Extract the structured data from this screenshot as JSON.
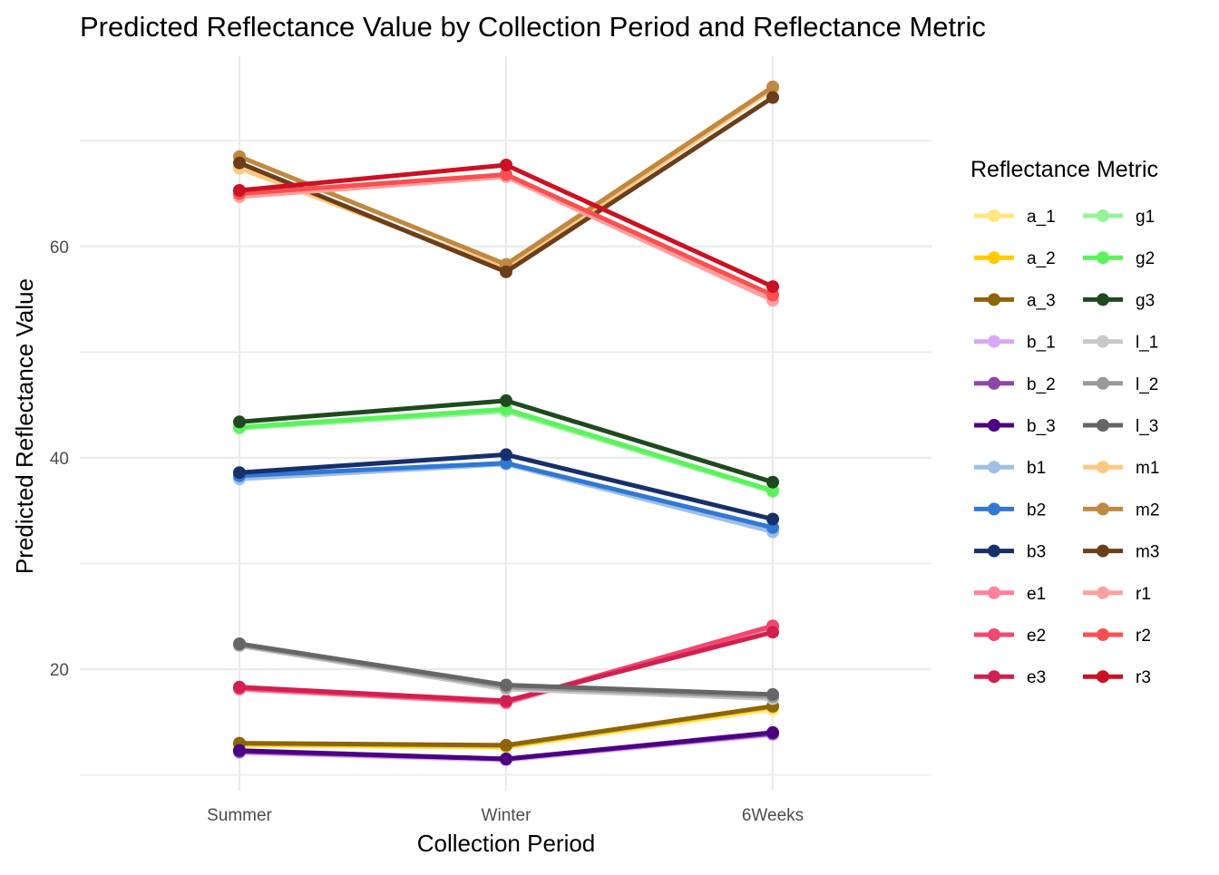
{
  "chart_data": {
    "type": "line",
    "title": "Predicted Reflectance Value by Collection Period and Reflectance Metric",
    "xlabel": "Collection Period",
    "ylabel": "Predicted Reflectance Value",
    "categories": [
      "Summer",
      "Winter",
      "6Weeks"
    ],
    "ylim": [
      8.5,
      78
    ],
    "yticks": [
      20,
      40,
      60
    ],
    "grid": true,
    "legend": {
      "title": "Reflectance Metric",
      "position": "right",
      "columns": 2
    },
    "series": [
      {
        "name": "a_1",
        "color": "#FFE680",
        "values": [
          12.8,
          12.6,
          16.2
        ]
      },
      {
        "name": "a_2",
        "color": "#FFCC00",
        "values": [
          12.9,
          12.7,
          16.4
        ]
      },
      {
        "name": "a_3",
        "color": "#8B6508",
        "values": [
          13.0,
          12.8,
          16.5
        ]
      },
      {
        "name": "b_1",
        "color": "#D8A8F8",
        "values": [
          12.1,
          11.4,
          13.8
        ]
      },
      {
        "name": "b_2",
        "color": "#8E44AD",
        "values": [
          12.2,
          11.5,
          13.9
        ]
      },
      {
        "name": "b_3",
        "color": "#4B0082",
        "values": [
          12.3,
          11.5,
          14.0
        ]
      },
      {
        "name": "b1",
        "color": "#9FBFE8",
        "values": [
          38.0,
          39.4,
          33.0
        ]
      },
      {
        "name": "b2",
        "color": "#3178D4",
        "values": [
          38.3,
          39.5,
          33.4
        ]
      },
      {
        "name": "b3",
        "color": "#172F6B",
        "values": [
          38.6,
          40.3,
          34.2
        ]
      },
      {
        "name": "e1",
        "color": "#FF8099",
        "values": [
          18.1,
          16.8,
          24.0
        ]
      },
      {
        "name": "e2",
        "color": "#F04870",
        "values": [
          18.2,
          16.9,
          24.1
        ]
      },
      {
        "name": "e3",
        "color": "#D12050",
        "values": [
          18.3,
          17.0,
          23.5
        ]
      },
      {
        "name": "g1",
        "color": "#99F299",
        "values": [
          42.8,
          44.4,
          36.8
        ]
      },
      {
        "name": "g2",
        "color": "#5CF25C",
        "values": [
          42.9,
          44.6,
          36.9
        ]
      },
      {
        "name": "g3",
        "color": "#1F4A1F",
        "values": [
          43.4,
          45.4,
          37.7
        ]
      },
      {
        "name": "l_1",
        "color": "#C8C8C8",
        "values": [
          22.2,
          18.1,
          17.2
        ]
      },
      {
        "name": "l_2",
        "color": "#999999",
        "values": [
          22.3,
          18.3,
          17.4
        ]
      },
      {
        "name": "l_3",
        "color": "#666666",
        "values": [
          22.4,
          18.5,
          17.6
        ]
      },
      {
        "name": "m1",
        "color": "#FFC880",
        "values": [
          67.4,
          57.9,
          74.9
        ]
      },
      {
        "name": "m2",
        "color": "#C08840",
        "values": [
          68.5,
          58.3,
          75.1
        ]
      },
      {
        "name": "m3",
        "color": "#6B3E1B",
        "values": [
          67.9,
          57.6,
          74.1
        ]
      },
      {
        "name": "r1",
        "color": "#FFA0A0",
        "values": [
          64.7,
          66.6,
          54.9
        ]
      },
      {
        "name": "r2",
        "color": "#F85050",
        "values": [
          65.0,
          66.8,
          55.4
        ]
      },
      {
        "name": "r3",
        "color": "#CC1122",
        "values": [
          65.3,
          67.7,
          56.2
        ]
      }
    ]
  }
}
